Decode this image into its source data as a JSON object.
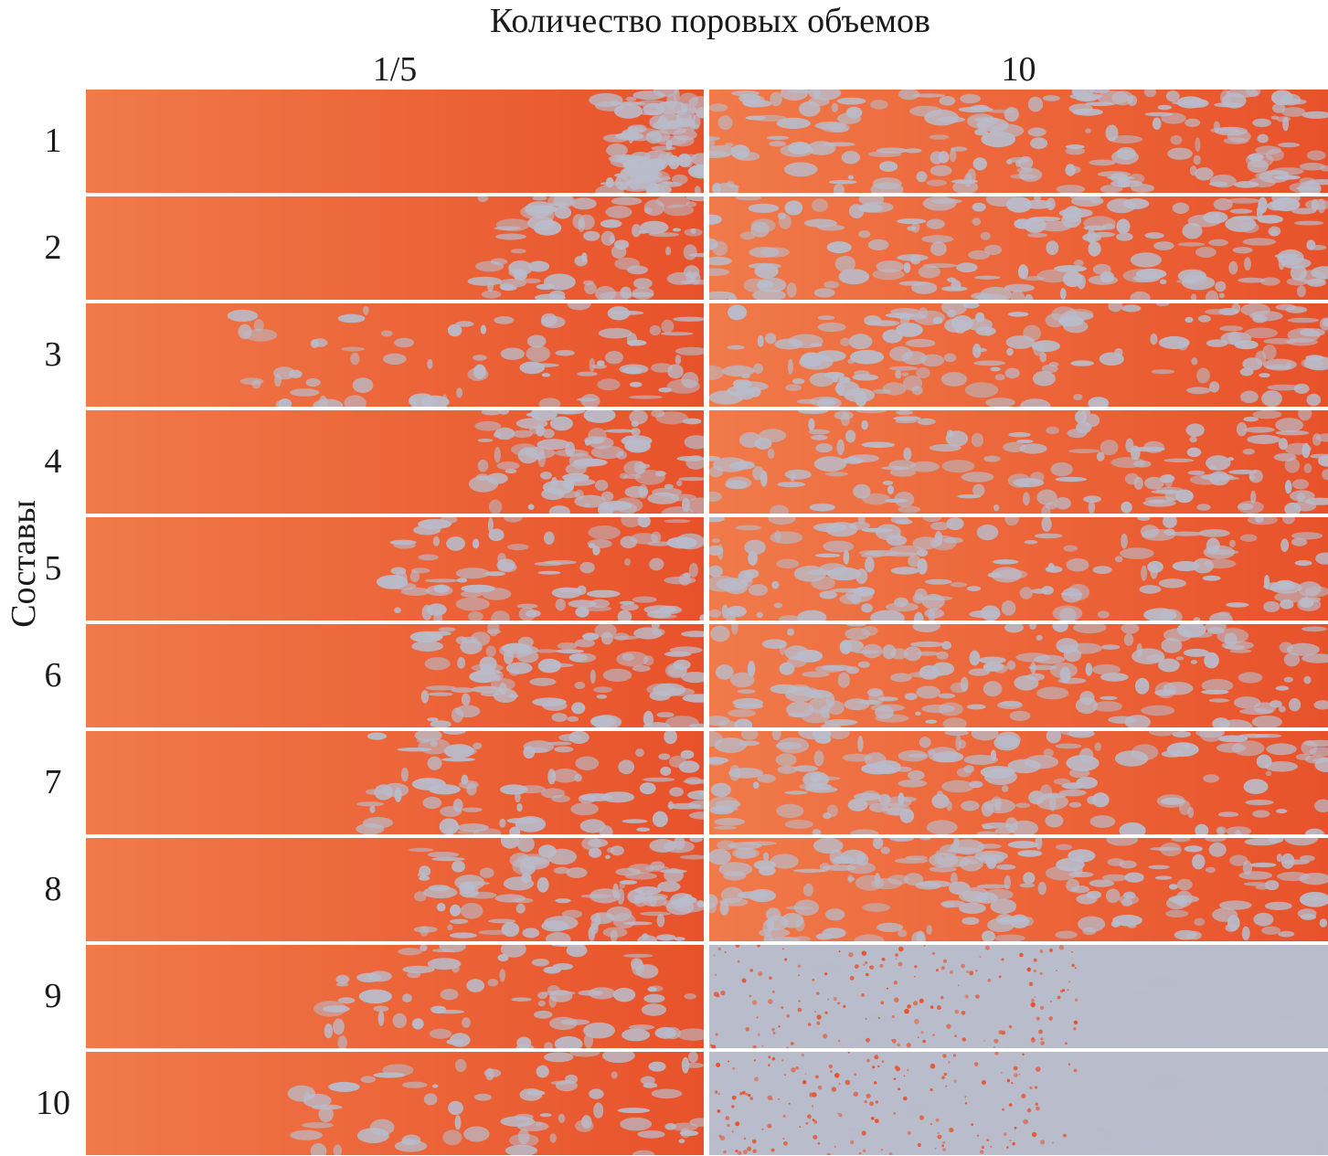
{
  "title": "Количество поровых объемов",
  "columns": [
    {
      "label": "1/5"
    },
    {
      "label": "10"
    }
  ],
  "row_axis_label": "Составы",
  "rows": [
    {
      "label": "1",
      "panels": [
        {
          "displaced_fraction": 0.3,
          "front": 0.1
        },
        {
          "displaced_fraction": 0.7,
          "front": 1.0
        }
      ]
    },
    {
      "label": "2",
      "panels": [
        {
          "displaced_fraction": 0.22,
          "front": 0.3
        },
        {
          "displaced_fraction": 0.65,
          "front": 1.0
        }
      ]
    },
    {
      "label": "3",
      "panels": [
        {
          "displaced_fraction": 0.22,
          "front": 0.7
        },
        {
          "displaced_fraction": 0.6,
          "front": 1.0
        }
      ]
    },
    {
      "label": "4",
      "panels": [
        {
          "displaced_fraction": 0.3,
          "front": 0.3
        },
        {
          "displaced_fraction": 0.55,
          "front": 1.0
        }
      ]
    },
    {
      "label": "5",
      "panels": [
        {
          "displaced_fraction": 0.25,
          "front": 0.45
        },
        {
          "displaced_fraction": 0.6,
          "front": 1.0
        }
      ]
    },
    {
      "label": "6",
      "panels": [
        {
          "displaced_fraction": 0.3,
          "front": 0.4
        },
        {
          "displaced_fraction": 0.62,
          "front": 1.0
        }
      ]
    },
    {
      "label": "7",
      "panels": [
        {
          "displaced_fraction": 0.25,
          "front": 0.5
        },
        {
          "displaced_fraction": 0.62,
          "front": 1.0
        }
      ]
    },
    {
      "label": "8",
      "panels": [
        {
          "displaced_fraction": 0.35,
          "front": 0.4
        },
        {
          "displaced_fraction": 0.7,
          "front": 1.0
        }
      ]
    },
    {
      "label": "9",
      "panels": [
        {
          "displaced_fraction": 0.2,
          "front": 0.55
        },
        {
          "displaced_fraction": 0.85,
          "front": 1.0
        }
      ]
    },
    {
      "label": "10",
      "panels": [
        {
          "displaced_fraction": 0.18,
          "front": 0.6
        },
        {
          "displaced_fraction": 0.92,
          "front": 1.0
        }
      ]
    }
  ],
  "colors": {
    "oil": "#e8522a",
    "oil_light": "#f07a4a",
    "water": "#b9bccb",
    "background": "#ffffff"
  }
}
